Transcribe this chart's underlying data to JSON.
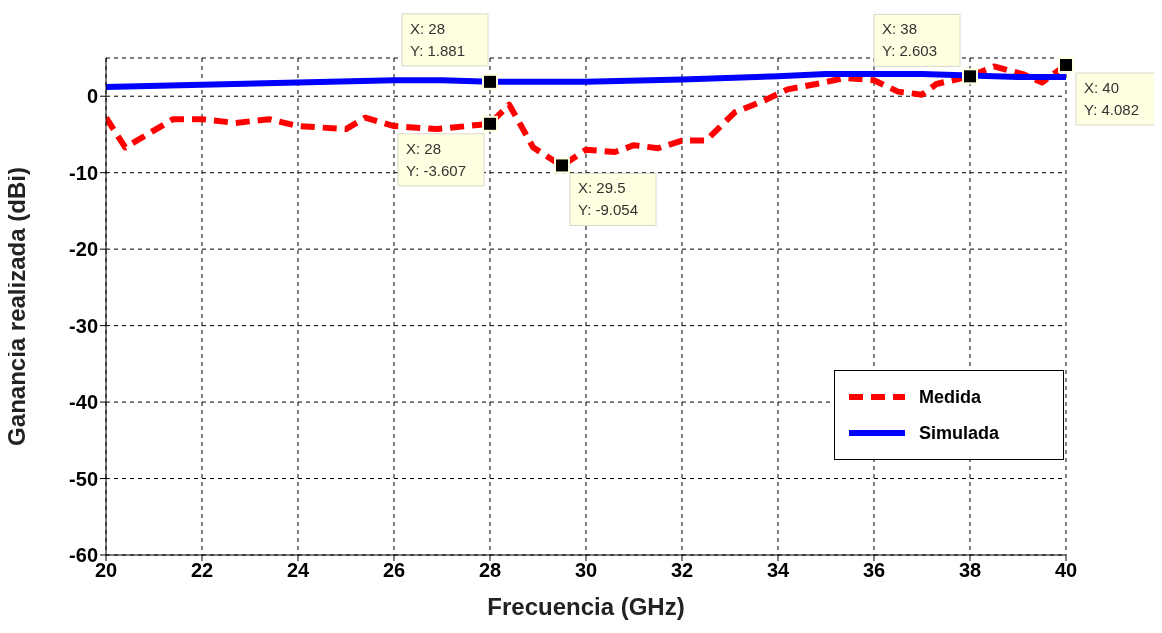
{
  "chart_data": {
    "type": "line",
    "xlabel": "Frecuencia (GHz)",
    "ylabel": "Ganancia realizada (dBi)",
    "xlim": [
      20,
      40
    ],
    "xticks": [
      20,
      22,
      24,
      26,
      28,
      30,
      32,
      34,
      36,
      38,
      40
    ],
    "ylim": [
      -60,
      5
    ],
    "yticks": [
      -60,
      -50,
      -40,
      -30,
      -20,
      -10,
      0
    ],
    "grid": true,
    "legend": "right",
    "series": [
      {
        "name": "Medida",
        "color": "#ff0000",
        "line_style": "dashed",
        "x": [
          20,
          20.4,
          21.4,
          22,
          22.7,
          23.4,
          24,
          25,
          25.4,
          26,
          26.9,
          28,
          28.4,
          28.9,
          29.5,
          30,
          30.6,
          31,
          31.5,
          32,
          32.5,
          33.1,
          33.7,
          34.2,
          34.8,
          35.4,
          36,
          36.5,
          37,
          37.3,
          38,
          38.5,
          39.1,
          39.5,
          40
        ],
        "values": [
          -2.8,
          -6.7,
          -3.0,
          -3.0,
          -3.5,
          -3.0,
          -3.9,
          -4.3,
          -2.8,
          -3.9,
          -4.3,
          -3.6,
          -1.1,
          -6.7,
          -9.1,
          -7.0,
          -7.3,
          -6.4,
          -6.8,
          -5.8,
          -5.8,
          -2.1,
          -0.6,
          0.9,
          1.6,
          2.4,
          2.1,
          0.6,
          0.2,
          1.6,
          2.6,
          3.9,
          2.9,
          1.8,
          4.1
        ]
      },
      {
        "name": "Simulada",
        "color": "#0000ff",
        "line_style": "solid",
        "x": [
          20,
          22,
          24,
          26,
          27,
          28,
          30,
          32,
          34,
          35,
          36,
          37,
          39,
          40
        ],
        "values": [
          1.2,
          1.5,
          1.8,
          2.1,
          2.1,
          1.9,
          1.9,
          2.2,
          2.6,
          2.9,
          2.9,
          2.9,
          2.5,
          2.5
        ]
      }
    ],
    "annotations": [
      {
        "text": "X: 28\nY: 1.881",
        "x": 28,
        "y": 1.881
      },
      {
        "text": "X: 28\nY: -3.607",
        "x": 28,
        "y": -3.607
      },
      {
        "text": "X: 29.5\nY: -9.054",
        "x": 29.5,
        "y": -9.054
      },
      {
        "text": "X: 38\nY: 2.603",
        "x": 38,
        "y": 2.603
      },
      {
        "text": "X: 40\nY: 4.082",
        "x": 40,
        "y": 4.082
      }
    ]
  }
}
